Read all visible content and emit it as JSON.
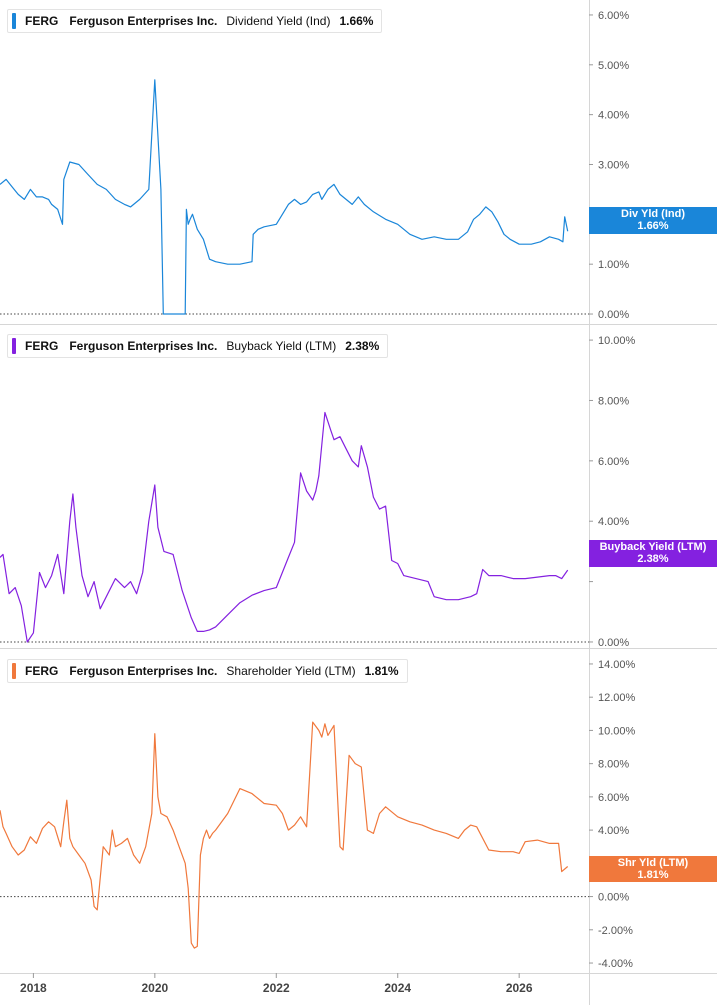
{
  "chart_data": [
    {
      "type": "line",
      "ticker": "FERG",
      "company": "Ferguson Enterprises Inc.",
      "metric": "Dividend Yield (Ind)",
      "current_value": "1.66%",
      "tag_label": "Div Yld (Ind)",
      "color": "#1a86d9",
      "ylim": [
        -0.2,
        6.3
      ],
      "yticks": [
        0,
        1,
        2,
        3,
        4,
        5,
        6
      ],
      "ytick_labels": [
        "0.00%",
        "1.00%",
        "2.00%",
        "3.00%",
        "4.00%",
        "5.00%",
        "6.00%"
      ],
      "series": [
        {
          "x": [
            2017.45,
            2017.55,
            2017.65,
            2017.75,
            2017.85,
            2017.95,
            2018.05,
            2018.15,
            2018.25,
            2018.3,
            2018.4,
            2018.48,
            2018.5,
            2018.6,
            2018.75,
            2018.9,
            2019.05,
            2019.2,
            2019.35,
            2019.5,
            2019.6,
            2019.75,
            2019.9,
            2020.0,
            2020.1,
            2020.14,
            2020.16,
            2020.2,
            2020.22,
            2020.3,
            2020.45,
            2020.5,
            2020.52,
            2020.55,
            2020.58,
            2020.62,
            2020.7,
            2020.8,
            2020.9,
            2021.0,
            2021.2,
            2021.4,
            2021.6,
            2021.62,
            2021.7,
            2021.8,
            2022.0,
            2022.1,
            2022.2,
            2022.3,
            2022.4,
            2022.5,
            2022.6,
            2022.7,
            2022.75,
            2022.85,
            2022.95,
            2023.05,
            2023.15,
            2023.25,
            2023.35,
            2023.45,
            2023.6,
            2023.8,
            2024.0,
            2024.2,
            2024.4,
            2024.6,
            2024.8,
            2025.0,
            2025.15,
            2025.25,
            2025.35,
            2025.45,
            2025.55,
            2025.65,
            2025.75,
            2025.85,
            2026.0,
            2026.2,
            2026.35,
            2026.5,
            2026.65,
            2026.72,
            2026.75,
            2026.8
          ],
          "values": [
            2.6,
            2.7,
            2.55,
            2.4,
            2.3,
            2.5,
            2.35,
            2.35,
            2.3,
            2.2,
            2.1,
            1.8,
            2.7,
            3.05,
            3.0,
            2.8,
            2.6,
            2.5,
            2.3,
            2.2,
            2.15,
            2.3,
            2.5,
            4.7,
            2.5,
            0.0,
            0.0,
            0.0,
            0.0,
            0.0,
            0.0,
            0.0,
            2.1,
            1.8,
            1.9,
            2.0,
            1.7,
            1.5,
            1.1,
            1.05,
            1.0,
            1.0,
            1.05,
            1.6,
            1.7,
            1.75,
            1.8,
            2.0,
            2.2,
            2.3,
            2.2,
            2.25,
            2.4,
            2.45,
            2.3,
            2.5,
            2.6,
            2.4,
            2.3,
            2.2,
            2.35,
            2.2,
            2.05,
            1.9,
            1.8,
            1.6,
            1.5,
            1.55,
            1.5,
            1.5,
            1.65,
            1.9,
            2.0,
            2.15,
            2.05,
            1.85,
            1.6,
            1.5,
            1.4,
            1.4,
            1.45,
            1.55,
            1.5,
            1.45,
            1.95,
            1.66
          ]
        }
      ]
    },
    {
      "type": "line",
      "ticker": "FERG",
      "company": "Ferguson Enterprises Inc.",
      "metric": "Buyback Yield (LTM)",
      "current_value": "2.38%",
      "tag_label": "Buyback Yield (LTM)",
      "color": "#8421e0",
      "ylim": [
        -0.2,
        10.5
      ],
      "yticks": [
        0,
        2,
        4,
        6,
        8,
        10
      ],
      "ytick_labels": [
        "0.00%",
        "",
        "4.00%",
        "6.00%",
        "8.00%",
        "10.00%"
      ],
      "series": [
        {
          "x": [
            2017.45,
            2017.5,
            2017.6,
            2017.7,
            2017.8,
            2017.9,
            2018.0,
            2018.1,
            2018.2,
            2018.3,
            2018.4,
            2018.5,
            2018.55,
            2018.6,
            2018.65,
            2018.7,
            2018.8,
            2018.9,
            2019.0,
            2019.1,
            2019.2,
            2019.35,
            2019.5,
            2019.6,
            2019.7,
            2019.8,
            2019.9,
            2020.0,
            2020.05,
            2020.15,
            2020.3,
            2020.45,
            2020.6,
            2020.7,
            2020.8,
            2020.9,
            2021.0,
            2021.2,
            2021.4,
            2021.6,
            2021.8,
            2022.0,
            2022.2,
            2022.3,
            2022.4,
            2022.5,
            2022.6,
            2022.65,
            2022.7,
            2022.8,
            2022.85,
            2022.9,
            2022.95,
            2023.05,
            2023.15,
            2023.25,
            2023.35,
            2023.4,
            2023.5,
            2023.6,
            2023.7,
            2023.8,
            2023.9,
            2024.0,
            2024.1,
            2024.3,
            2024.5,
            2024.6,
            2024.8,
            2025.0,
            2025.2,
            2025.3,
            2025.4,
            2025.5,
            2025.7,
            2025.9,
            2026.1,
            2026.3,
            2026.5,
            2026.6,
            2026.7,
            2026.8
          ],
          "values": [
            2.8,
            2.9,
            1.6,
            1.8,
            1.2,
            0.0,
            0.3,
            2.3,
            1.8,
            2.2,
            2.9,
            1.6,
            2.8,
            4.0,
            4.9,
            3.8,
            2.2,
            1.5,
            2.0,
            1.1,
            1.5,
            2.1,
            1.8,
            2.0,
            1.6,
            2.3,
            4.0,
            5.2,
            3.8,
            3.0,
            2.9,
            1.7,
            0.8,
            0.35,
            0.35,
            0.4,
            0.5,
            0.9,
            1.3,
            1.55,
            1.7,
            1.8,
            2.8,
            3.3,
            5.6,
            5.0,
            4.7,
            5.0,
            5.5,
            7.6,
            7.3,
            7.0,
            6.7,
            6.8,
            6.4,
            6.0,
            5.8,
            6.5,
            5.8,
            4.8,
            4.4,
            4.5,
            2.7,
            2.6,
            2.2,
            2.1,
            2.0,
            1.5,
            1.4,
            1.4,
            1.5,
            1.6,
            2.4,
            2.2,
            2.2,
            2.1,
            2.1,
            2.15,
            2.2,
            2.2,
            2.1,
            2.38
          ]
        }
      ]
    },
    {
      "type": "line",
      "ticker": "FERG",
      "company": "Ferguson Enterprises Inc.",
      "metric": "Shareholder Yield (LTM)",
      "current_value": "1.81%",
      "tag_label": "Shr Yld (LTM)",
      "color": "#f0783c",
      "ylim": [
        -4.6,
        14.9
      ],
      "yticks": [
        -4,
        -2,
        0,
        2,
        4,
        6,
        8,
        10,
        12,
        14
      ],
      "ytick_labels": [
        "-4.00%",
        "-2.00%",
        "0.00%",
        "",
        "4.00%",
        "6.00%",
        "8.00%",
        "10.00%",
        "12.00%",
        "14.00%"
      ],
      "series": [
        {
          "x": [
            2017.45,
            2017.5,
            2017.55,
            2017.65,
            2017.75,
            2017.85,
            2017.95,
            2018.05,
            2018.15,
            2018.25,
            2018.35,
            2018.45,
            2018.5,
            2018.55,
            2018.6,
            2018.65,
            2018.75,
            2018.85,
            2018.95,
            2019.0,
            2019.05,
            2019.15,
            2019.25,
            2019.3,
            2019.35,
            2019.45,
            2019.55,
            2019.65,
            2019.75,
            2019.85,
            2019.95,
            2020.0,
            2020.05,
            2020.1,
            2020.2,
            2020.3,
            2020.4,
            2020.5,
            2020.55,
            2020.6,
            2020.65,
            2020.7,
            2020.75,
            2020.8,
            2020.85,
            2020.9,
            2020.95,
            2021.0,
            2021.2,
            2021.4,
            2021.6,
            2021.8,
            2022.0,
            2022.1,
            2022.2,
            2022.3,
            2022.4,
            2022.5,
            2022.6,
            2022.7,
            2022.75,
            2022.8,
            2022.85,
            2022.95,
            2023.05,
            2023.1,
            2023.2,
            2023.3,
            2023.4,
            2023.5,
            2023.6,
            2023.7,
            2023.8,
            2024.0,
            2024.2,
            2024.4,
            2024.6,
            2024.8,
            2025.0,
            2025.1,
            2025.2,
            2025.3,
            2025.5,
            2025.7,
            2025.9,
            2026.0,
            2026.1,
            2026.3,
            2026.5,
            2026.6,
            2026.65,
            2026.7,
            2026.8
          ],
          "values": [
            5.2,
            4.2,
            3.8,
            3.0,
            2.5,
            2.8,
            3.6,
            3.2,
            4.1,
            4.5,
            4.2,
            3.0,
            4.5,
            5.8,
            3.5,
            3.0,
            2.5,
            2.0,
            1.0,
            -0.6,
            -0.8,
            3.0,
            2.5,
            4.0,
            3.0,
            3.2,
            3.5,
            2.5,
            2.0,
            3.0,
            5.0,
            9.8,
            6.0,
            5.0,
            4.8,
            4.0,
            3.0,
            2.0,
            0.5,
            -2.8,
            -3.1,
            -3.0,
            2.5,
            3.5,
            4.0,
            3.5,
            3.8,
            4.0,
            5.0,
            6.5,
            6.2,
            5.6,
            5.5,
            5.0,
            4.0,
            4.3,
            4.8,
            4.2,
            10.5,
            10.0,
            9.6,
            10.4,
            9.7,
            10.3,
            3.0,
            2.8,
            8.5,
            8.0,
            7.8,
            4.0,
            3.8,
            5.0,
            5.4,
            4.8,
            4.5,
            4.3,
            4.0,
            3.8,
            3.5,
            4.0,
            4.3,
            4.2,
            2.8,
            2.7,
            2.7,
            2.6,
            3.3,
            3.4,
            3.2,
            3.2,
            3.2,
            1.5,
            1.81
          ]
        }
      ]
    }
  ],
  "x_axis": {
    "ticks": [
      2018,
      2020,
      2022,
      2024,
      2026
    ],
    "tick_labels": [
      "2018",
      "2020",
      "2022",
      "2024",
      "2026"
    ],
    "xlim": [
      2017.45,
      2027.15
    ]
  }
}
